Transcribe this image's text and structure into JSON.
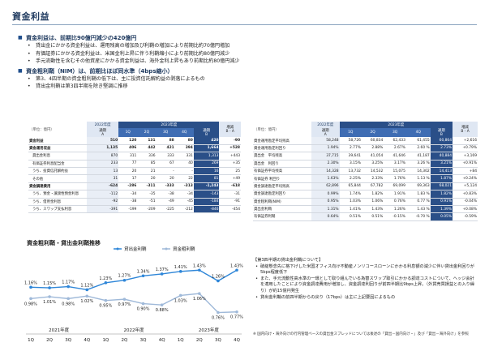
{
  "title": "資金利益",
  "bullets": [
    {
      "level": 1,
      "text": "資金利益は、前期比90億円減少の420億円"
    },
    {
      "level": 2,
      "text": "貸出金にかかる資金利益は、運用残高の増加及び利鞘の増加により前期比約70億円増加"
    },
    {
      "level": 2,
      "text": "有価証券にかかる資金利益は、米国金利上昇に伴う利鞘縮小により前期比約80億円減少"
    },
    {
      "level": 2,
      "text": "手元流動性を含むその他資産にかかる資金利益は、海外金利上昇もあり前期比約80億円減少"
    },
    {
      "level": 1,
      "text": "資金粗利鞘（NIM）は、前期比ほぼ同水準（4bps縮小）"
    },
    {
      "level": 2,
      "text": "第3、4四半期の資金粗利鞘の低下は、主に投資信託解約益の剥落によるもの"
    },
    {
      "level": 2,
      "text": "貸出金利鞘は第3四半期を除き堅調に推移"
    }
  ],
  "left_table": {
    "unit": "（単位：億円）",
    "year_prev": "2022年度",
    "year_cur": "2023年度",
    "col_a": "通期",
    "col_a_sub": "A",
    "col_b": "通期",
    "col_b_sub": "B",
    "col_diff": "増減",
    "col_diff_sub": "B - A",
    "quarters": [
      "1Q",
      "2Q",
      "3Q",
      "4Q"
    ],
    "rows": [
      {
        "label": "資金利益",
        "a": "510",
        "q": [
          "120",
          "131",
          "88",
          "80"
        ],
        "b": "420",
        "d": "-90",
        "bold": true,
        "sub": false
      },
      {
        "label": "資金運用収益",
        "a": "1,135",
        "q": [
          "406",
          "442",
          "421",
          "394"
        ],
        "b": "1,664",
        "d": "+528",
        "bold": true,
        "sub": false
      },
      {
        "label": "貸出金利息",
        "a": "870",
        "q": [
          "311",
          "336",
          "333",
          "331"
        ],
        "b": "1,313",
        "d": "+443",
        "bold": false,
        "sub": true
      },
      {
        "label": "有価証券利息配当金",
        "a": "233",
        "q": [
          "77",
          "85",
          "67",
          "40"
        ],
        "b": "269",
        "d": "+35",
        "bold": false,
        "sub": true
      },
      {
        "label": "うち、投資信託解約益",
        "a": "13",
        "q": [
          "20",
          "21",
          "-",
          "-"
        ],
        "b": "16",
        "d": "25",
        "d2": "+12",
        "bold": false,
        "sub": true
      },
      {
        "label": "その他",
        "a": "31",
        "q": [
          "17",
          "20",
          "20",
          "22"
        ],
        "b": "81",
        "d": "+49",
        "bold": false,
        "sub": true
      },
      {
        "label": "資金調達費用",
        "a": "-624",
        "q": [
          "-286",
          "-311",
          "-333",
          "-313"
        ],
        "b": "-1,243",
        "d": "-618",
        "bold": true,
        "sub": false
      },
      {
        "label": "うち、預金・譲渡性預金利息",
        "a": "-112",
        "q": [
          "-34",
          "-35",
          "-38",
          "-34"
        ],
        "b": "-143",
        "d": "-31",
        "bold": false,
        "sub": true
      },
      {
        "label": "うち、借用金利息",
        "a": "-92",
        "q": [
          "-38",
          "-51",
          "-49",
          "-45"
        ],
        "b": "-184",
        "d": "-91",
        "bold": false,
        "sub": true
      },
      {
        "label": "うち、スワップ支払利息",
        "a": "-391",
        "q": [
          "-199",
          "-209",
          "-225",
          "-212"
        ],
        "b": "-846",
        "d": "-454",
        "bold": false,
        "sub": true
      }
    ]
  },
  "right_table": {
    "unit": "（単位：億円）",
    "year_prev": "2022年度",
    "year_cur": "2023年度",
    "col_a": "通期",
    "col_a_sub": "A",
    "col_b": "通期",
    "col_b_sub": "B",
    "col_diff": "増減",
    "col_diff_sub": "B - A",
    "quarters": [
      "1Q",
      "2Q",
      "3Q",
      "4Q"
    ],
    "rows": [
      {
        "label": "資金運用勘定平均残高",
        "a": "58,248",
        "q": [
          "58,726",
          "60,834",
          "62,433",
          "61,455"
        ],
        "b": "60,864",
        "d": "+2,616"
      },
      {
        "label": "資金運用勘定利回り",
        "a": "1.94%",
        "q": [
          "2.77%",
          "2.88%",
          "2.67%",
          "2.60 %"
        ],
        "b": "2.73%",
        "d": "+0.79%"
      },
      {
        "label": "貸出金　平均残高",
        "a": "37,715",
        "q": [
          "39,641",
          "41,054",
          "41,646",
          "41,187"
        ],
        "b": "40,884",
        "d": "+3,169"
      },
      {
        "label": "貸出金　利回り",
        "a": "2.30%",
        "q": [
          "3.15%",
          "3.25%",
          "3.17%",
          "3.26 %"
        ],
        "b": "3.21%",
        "d": "+0.91%"
      },
      {
        "label": "有価証券平均残高",
        "a": "14,328",
        "q": [
          "13,732",
          "14,532",
          "15,075",
          "14,302"
        ],
        "b": "14,413",
        "d": "+84"
      },
      {
        "label": "有価証券 利回り",
        "a": "1.63%",
        "q": [
          "2.25%",
          "2.33%",
          "1.76%",
          "1.13 %"
        ],
        "b": "1.87%",
        "d": "+0.24%"
      },
      {
        "label": "資金調達勘定平均残高",
        "a": "62,896",
        "q": [
          "65,844",
          "67,782",
          "69,099",
          "69,363"
        ],
        "b": "68,021",
        "d": "+5,124"
      },
      {
        "label": "資金調達勘定利回り",
        "a": "0.99%",
        "q": [
          "1.74%",
          "1.82%",
          "1.91%",
          "1.83 %"
        ],
        "b": "1.82%",
        "d": "+0.83%"
      },
      {
        "label": "資金粗利鞘(NIM)",
        "a": "0.95%",
        "q": [
          "1.03%",
          "1.06%",
          "0.76%",
          "0.77 %"
        ],
        "b": "0.91%",
        "d": "-0.04%"
      },
      {
        "label": "貸出金利鞘",
        "a": "1.31%",
        "q": [
          "1.41%",
          "1.43%",
          "1.26%",
          "1.43 %"
        ],
        "b": "1.39%",
        "d": "+0.08%"
      },
      {
        "label": "有価証券利鞘",
        "a": "0.64%",
        "q": [
          "0.51%",
          "0.51%",
          "-0.15%",
          "-0.70 %"
        ],
        "b": "0.05%",
        "d": "-0.59%"
      }
    ]
  },
  "chart_data": {
    "type": "line",
    "title": "資金粗利鞘・貸出金利鞘推移",
    "x": [
      "1Q",
      "2Q",
      "3Q",
      "4Q",
      "1Q",
      "2Q",
      "3Q",
      "4Q",
      "1Q",
      "2Q",
      "3Q",
      "4Q"
    ],
    "year_labels": [
      "2021年度",
      "2022年度",
      "2023年度"
    ],
    "series": [
      {
        "name": "貸出金利鞘",
        "color": "#2e86d8",
        "values": [
          1.16,
          1.15,
          1.17,
          1.12,
          1.23,
          1.27,
          1.34,
          1.37,
          1.41,
          1.43,
          1.26,
          1.43
        ],
        "labels": [
          "1.16%",
          "1.15%",
          "1.17%",
          "1.12%",
          "1.23%",
          "1.27%",
          "1.34%",
          "1.37%",
          "1.41%",
          "1.43%",
          "1.26%",
          "1.43%"
        ]
      },
      {
        "name": "資金粗利鞘",
        "color": "#9fb9d9",
        "values": [
          0.98,
          1.01,
          0.98,
          1.02,
          0.95,
          0.97,
          0.9,
          0.88,
          1.03,
          1.06,
          0.76,
          0.77
        ],
        "labels": [
          "0.98%",
          "1.01%",
          "0.98%",
          "1.02%",
          "0.95%",
          "0.97%",
          "0.90%",
          "0.88%",
          "1.03%",
          "1.06%",
          "0.76%",
          "0.77%"
        ]
      }
    ],
    "ylim": [
      0.6,
      1.6
    ]
  },
  "notes": {
    "head": "【第3四半期の貸出金利鞘について】",
    "items": [
      "破綻懸念先に格下げした米国オフィス向け不動産ノンリコースローンにかかる利息額の減少に伴い貸出金利回りが5bps程度低下",
      "また、手元流動性高水準の一環として取り組んでいる為替スワップ取引にかかる調達コストについて、ヘッジ会計を適用したことにより資金調達費用が増加し、資金調達利回りが前四半期比9bps上昇。（外貨売買損益との入り繰り）が約15億円発生",
      "貸出金利鞘の前四半期からの戻り（17bps）は主に上記要因によるもの"
    ]
  },
  "footnote": "※ 国内向け・海外向けの行内管理ベースの貸出金スプレッドについては後述の「貸出－国内向け・」及び「貸出－海外向け」を参照"
}
